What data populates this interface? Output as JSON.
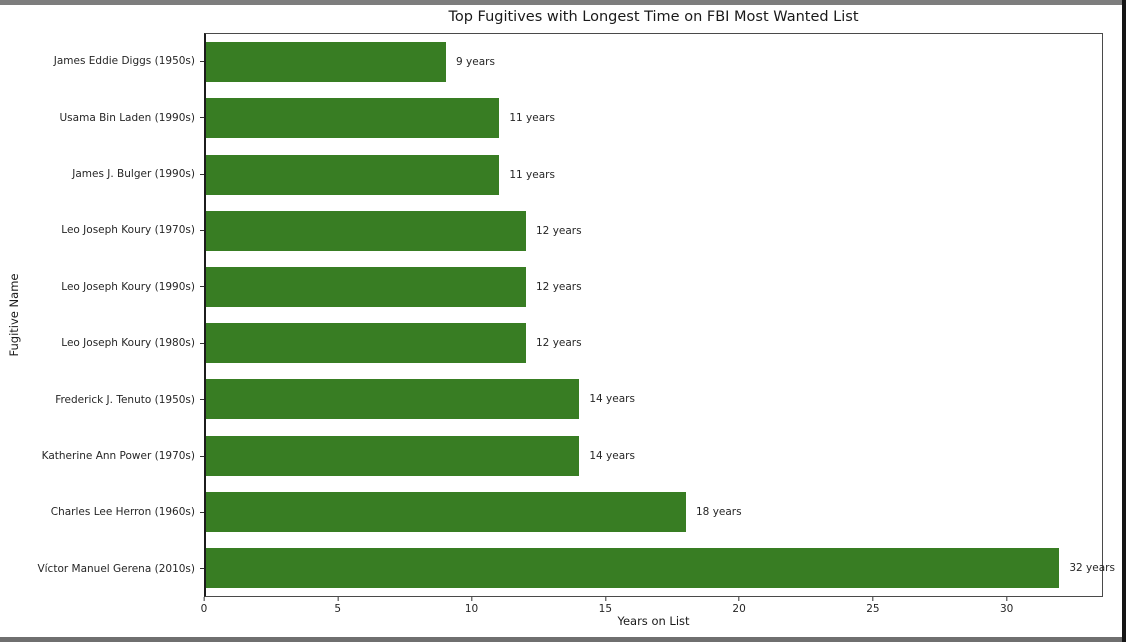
{
  "window": {
    "background": "#ffffff",
    "border_top_color": "#7d7d7d",
    "border_bottom_color": "#6f6f6f",
    "border_right_color": "#151515"
  },
  "chart_data": {
    "type": "bar",
    "orientation": "horizontal",
    "title": "Top Fugitives with Longest Time on FBI Most Wanted List",
    "xlabel": "Years on List",
    "ylabel": "Fugitive Name",
    "categories": [
      "James Eddie Diggs (1950s)",
      "Usama Bin Laden (1990s)",
      "James J. Bulger (1990s)",
      "Leo Joseph Koury (1970s)",
      "Leo Joseph Koury (1990s)",
      "Leo Joseph Koury (1980s)",
      "Frederick J. Tenuto (1950s)",
      "Katherine Ann Power (1970s)",
      "Charles Lee Herron (1960s)",
      "Víctor Manuel Gerena (2010s)"
    ],
    "values": [
      9,
      11,
      11,
      12,
      12,
      12,
      14,
      14,
      18,
      32
    ],
    "bar_labels": [
      "9 years",
      "11 years",
      "11 years",
      "12 years",
      "12 years",
      "12 years",
      "14 years",
      "14 years",
      "18 years",
      "32 years"
    ],
    "bar_color": "#387d23",
    "xlim": [
      0,
      33.6
    ],
    "xticks": [
      0,
      5,
      10,
      15,
      20,
      25,
      30
    ],
    "grid": false,
    "legend_position": "none",
    "axes_text_color": "#262626"
  }
}
